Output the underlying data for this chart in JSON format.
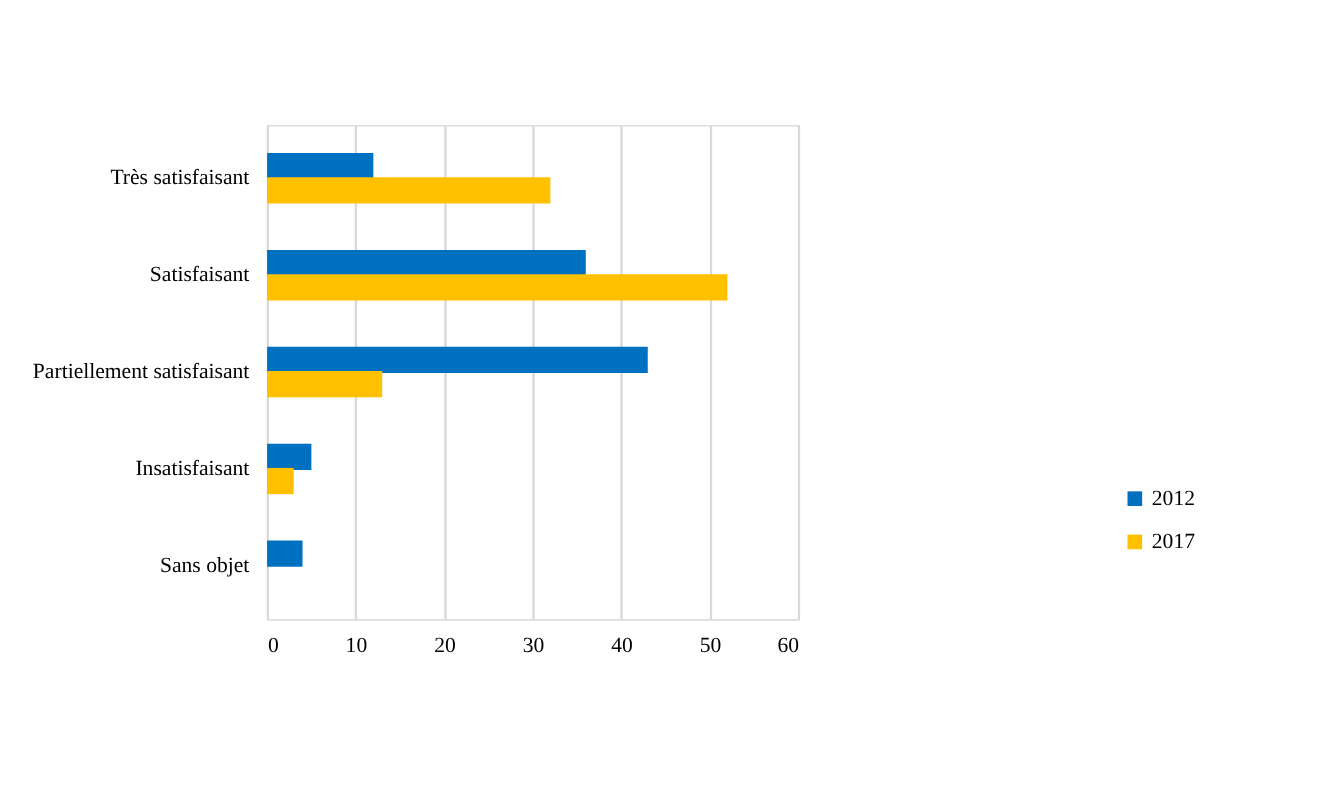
{
  "chart_data": {
    "type": "bar",
    "orientation": "horizontal",
    "categories": [
      "Très satisfaisant",
      "Satisfaisant",
      "Partiellement satisfaisant",
      "Insatisfaisant",
      "Sans objet"
    ],
    "series": [
      {
        "name": "2012",
        "color": "#0070c0",
        "values": [
          12,
          36,
          43,
          5,
          4
        ]
      },
      {
        "name": "2017",
        "color": "#ffc000",
        "values": [
          32,
          52,
          13,
          3,
          null
        ]
      }
    ],
    "xlim": [
      0,
      60
    ],
    "xticks": [
      0,
      10,
      20,
      30,
      40,
      50,
      60
    ],
    "grid": "x",
    "legend": "right"
  }
}
